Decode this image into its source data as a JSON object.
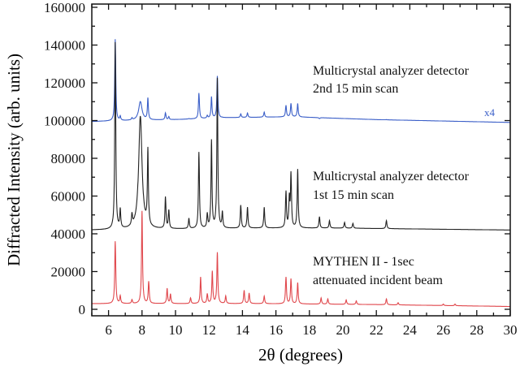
{
  "chart_data": {
    "type": "line",
    "title": "",
    "xlabel": "2θ (degrees)",
    "ylabel": "Diffracted Intensity (arb. units)",
    "xlim": [
      5,
      30
    ],
    "ylim": [
      0,
      160000
    ],
    "xticks": [
      6,
      8,
      10,
      12,
      14,
      16,
      18,
      20,
      22,
      24,
      26,
      28,
      30
    ],
    "yticks": [
      0,
      20000,
      40000,
      60000,
      80000,
      100000,
      120000,
      140000,
      160000
    ],
    "grid": false,
    "legend": "none",
    "series": [
      {
        "color": "#3b5fc8",
        "baseline": [
          [
            5,
            99500
          ],
          [
            10,
            100500
          ],
          [
            13,
            101500
          ],
          [
            17,
            102000
          ],
          [
            22,
            100500
          ],
          [
            30,
            99000
          ]
        ],
        "peaks": [
          [
            6.4,
            143000
          ],
          [
            6.7,
            102000
          ],
          [
            7.4,
            101000
          ],
          [
            7.9,
            110000
          ],
          [
            8.35,
            111500
          ],
          [
            9.4,
            104000
          ],
          [
            9.6,
            102000
          ],
          [
            10.8,
            101000
          ],
          [
            11.4,
            114500
          ],
          [
            11.9,
            102500
          ],
          [
            12.15,
            112500
          ],
          [
            12.5,
            123500
          ],
          [
            12.8,
            101500
          ],
          [
            13.9,
            103500
          ],
          [
            14.3,
            104000
          ],
          [
            15.3,
            104500
          ],
          [
            16.6,
            108000
          ],
          [
            16.9,
            109000
          ],
          [
            17.3,
            109000
          ],
          [
            18.6,
            101000
          ],
          [
            22.6,
            100500
          ]
        ]
      },
      {
        "color": "#222222",
        "baseline": [
          [
            5,
            42000
          ],
          [
            10,
            42500
          ],
          [
            15,
            43000
          ],
          [
            20,
            43000
          ],
          [
            30,
            42000
          ]
        ],
        "peaks": [
          [
            6.4,
            141000
          ],
          [
            6.7,
            52000
          ],
          [
            7.4,
            48000
          ],
          [
            7.9,
            102000
          ],
          [
            8.35,
            82000
          ],
          [
            9.4,
            59000
          ],
          [
            9.6,
            52000
          ],
          [
            10.8,
            48000
          ],
          [
            11.4,
            83000
          ],
          [
            11.9,
            50000
          ],
          [
            12.15,
            89000
          ],
          [
            12.5,
            122000
          ],
          [
            12.8,
            51000
          ],
          [
            13.9,
            55000
          ],
          [
            14.3,
            54000
          ],
          [
            15.3,
            54000
          ],
          [
            16.6,
            62000
          ],
          [
            16.8,
            58000
          ],
          [
            16.9,
            71000
          ],
          [
            17.3,
            74000
          ],
          [
            18.6,
            49000
          ],
          [
            19.2,
            47000
          ],
          [
            20.1,
            46000
          ],
          [
            20.6,
            45500
          ],
          [
            22.6,
            47000
          ]
        ]
      },
      {
        "color": "#e0474c",
        "baseline": [
          [
            5,
            3000
          ],
          [
            15,
            3000
          ],
          [
            22,
            2500
          ],
          [
            30,
            1500
          ]
        ],
        "peaks": [
          [
            6.4,
            36000
          ],
          [
            6.7,
            7000
          ],
          [
            7.4,
            5000
          ],
          [
            8.0,
            52000
          ],
          [
            8.4,
            14500
          ],
          [
            9.5,
            11000
          ],
          [
            9.7,
            8000
          ],
          [
            10.9,
            6000
          ],
          [
            11.5,
            17000
          ],
          [
            11.9,
            8000
          ],
          [
            12.2,
            20000
          ],
          [
            12.5,
            30000
          ],
          [
            13.0,
            7000
          ],
          [
            14.1,
            10000
          ],
          [
            14.4,
            8500
          ],
          [
            15.3,
            7000
          ],
          [
            16.6,
            17000
          ],
          [
            16.9,
            16000
          ],
          [
            17.3,
            14000
          ],
          [
            18.7,
            6000
          ],
          [
            19.1,
            5500
          ],
          [
            20.2,
            5000
          ],
          [
            20.8,
            4500
          ],
          [
            22.6,
            5500
          ],
          [
            23.3,
            3500
          ],
          [
            26.0,
            2800
          ],
          [
            26.7,
            2800
          ]
        ]
      }
    ],
    "annotations": {
      "blue_line1": "Multicrystal analyzer detector",
      "blue_line2": "2nd  15 min scan",
      "blue_scale": "x4",
      "black_line1": "Multicrystal analyzer detector",
      "black_line2": "1st  15 min scan",
      "red_line1": "MYTHEN II - 1sec",
      "red_line2": "attenuated incident beam"
    }
  }
}
